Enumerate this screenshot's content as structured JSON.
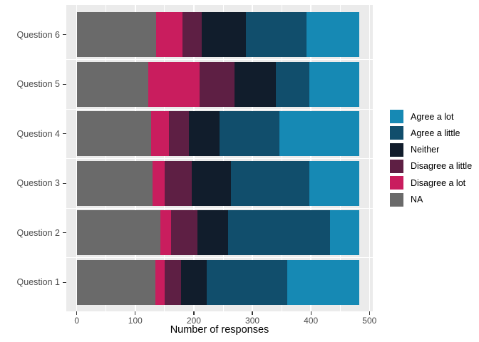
{
  "chart_data": {
    "type": "bar",
    "orientation": "horizontal",
    "stacked": true,
    "title": "",
    "xlabel": "Number of responses",
    "ylabel": "",
    "categories": [
      "Question 6",
      "Question 5",
      "Question 4",
      "Question 3",
      "Question 2",
      "Question 1"
    ],
    "categories_order": "top-to-bottom",
    "x_ticks": [
      0,
      100,
      200,
      300,
      400,
      500
    ],
    "x_minor_ticks": [
      50,
      150,
      250,
      350,
      450
    ],
    "xlim": [
      0,
      500
    ],
    "bar_total_per_question": 482,
    "series": [
      {
        "name": "NA",
        "color": "#6a6a6a",
        "values": [
          135,
          122,
          127,
          130,
          143,
          134
        ]
      },
      {
        "name": "Disagree a lot",
        "color": "#c91d5e",
        "values": [
          46,
          88,
          31,
          20,
          18,
          16
        ]
      },
      {
        "name": "Disagree a little",
        "color": "#5e1f44",
        "values": [
          32,
          60,
          33,
          47,
          45,
          28
        ]
      },
      {
        "name": "Neither",
        "color": "#111d2c",
        "values": [
          76,
          70,
          53,
          66,
          53,
          44
        ]
      },
      {
        "name": "Agree a little",
        "color": "#114e6c",
        "values": [
          103,
          57,
          102,
          134,
          174,
          138
        ]
      },
      {
        "name": "Agree a lot",
        "color": "#1689b4",
        "values": [
          90,
          85,
          136,
          85,
          49,
          122
        ]
      }
    ],
    "legend": {
      "position": "right",
      "entries": [
        {
          "label": "Agree a lot",
          "color": "#1689b4"
        },
        {
          "label": "Agree a little",
          "color": "#114e6c"
        },
        {
          "label": "Neither",
          "color": "#111d2c"
        },
        {
          "label": "Disagree a little",
          "color": "#5e1f44"
        },
        {
          "label": "Disagree a lot",
          "color": "#c91d5e"
        },
        {
          "label": "NA",
          "color": "#6a6a6a"
        }
      ]
    },
    "theme": {
      "panel_background": "#ebebeb",
      "gridline_color": "#ffffff",
      "axis_text_color": "#4d4d4d",
      "tick_color": "#333333",
      "title_text_color": "#000000",
      "figure_background": "#ffffff"
    }
  }
}
